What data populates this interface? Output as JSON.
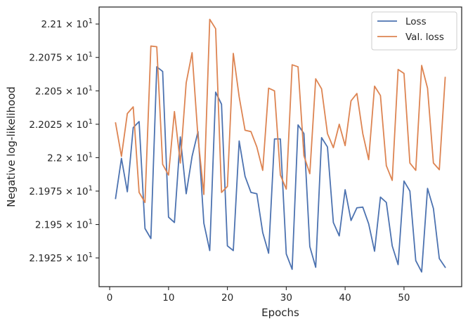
{
  "chart_data": {
    "type": "line",
    "xlabel": "Epochs",
    "ylabel": "Negative log-likelihood",
    "xlim": [
      -1.8,
      59.8
    ],
    "ylim": [
      21.9035,
      22.1127
    ],
    "x_ticks": [
      0,
      10,
      20,
      30,
      40,
      50
    ],
    "y_ticks": [
      {
        "value": 21.925,
        "mantissa": "2.1925"
      },
      {
        "value": 21.95,
        "mantissa": "2.195"
      },
      {
        "value": 21.975,
        "mantissa": "2.1975"
      },
      {
        "value": 22.0,
        "mantissa": "2.2"
      },
      {
        "value": 22.025,
        "mantissa": "2.2025"
      },
      {
        "value": 22.05,
        "mantissa": "2.205"
      },
      {
        "value": 22.075,
        "mantissa": "2.2075"
      },
      {
        "value": 22.1,
        "mantissa": "2.21"
      }
    ],
    "y_tick_suffix": "× 10",
    "y_tick_exponent": "1",
    "grid": false,
    "legend_position": "top-right",
    "x": [
      1,
      2,
      3,
      4,
      5,
      6,
      7,
      8,
      9,
      10,
      11,
      12,
      13,
      14,
      15,
      16,
      17,
      18,
      19,
      20,
      21,
      22,
      23,
      24,
      25,
      26,
      27,
      28,
      29,
      30,
      31,
      32,
      33,
      34,
      35,
      36,
      37,
      38,
      39,
      40,
      41,
      42,
      43,
      44,
      45,
      46,
      47,
      48,
      49,
      50,
      51,
      52,
      53,
      54,
      55,
      56,
      57
    ],
    "series": [
      {
        "name": "Loss",
        "color": "#4c72b0",
        "values": [
          21.9695,
          21.9995,
          21.9745,
          22.0225,
          22.027,
          21.947,
          21.9395,
          22.068,
          22.0645,
          21.9555,
          21.9515,
          22.0155,
          21.973,
          22.001,
          22.0195,
          21.951,
          21.9305,
          22.049,
          22.04,
          21.934,
          21.9305,
          22.0125,
          21.986,
          21.974,
          21.973,
          21.944,
          21.9285,
          22.014,
          22.014,
          21.928,
          21.9165,
          22.0245,
          22.018,
          21.9335,
          21.918,
          22.015,
          22.008,
          21.9515,
          21.9415,
          21.976,
          21.953,
          21.9625,
          21.963,
          21.9505,
          21.93,
          21.9705,
          21.9665,
          21.934,
          21.92,
          21.9825,
          21.975,
          21.923,
          21.9145,
          21.977,
          21.962,
          21.9245,
          21.918
        ]
      },
      {
        "name": "Val. loss",
        "color": "#dd8452",
        "values": [
          22.026,
          22.001,
          22.033,
          22.038,
          21.974,
          21.9665,
          22.0835,
          22.083,
          21.995,
          21.987,
          22.0345,
          21.996,
          22.056,
          22.0785,
          22.0155,
          21.9725,
          22.1035,
          22.0965,
          21.974,
          21.9785,
          22.078,
          22.0455,
          22.0205,
          22.0195,
          22.008,
          21.9905,
          22.052,
          22.05,
          21.987,
          21.9765,
          22.0695,
          22.068,
          22.0015,
          21.988,
          22.059,
          22.0515,
          22.018,
          22.0075,
          22.025,
          22.009,
          22.0425,
          22.048,
          22.018,
          21.9985,
          22.0535,
          22.0465,
          21.994,
          21.983,
          22.066,
          22.063,
          21.996,
          21.9905,
          22.069,
          22.052,
          21.996,
          21.991,
          22.06
        ]
      }
    ]
  }
}
